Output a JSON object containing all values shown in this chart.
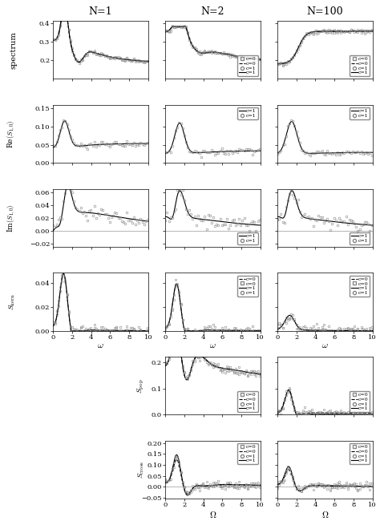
{
  "title_cols": [
    "N=1",
    "N=2",
    "N=100"
  ],
  "ylabels": [
    "spectrum",
    "Re$(S_{1,0})$",
    "Im$(S_{1,0})$",
    "$S_{\\rm kern}$",
    "$S_{\\rm pop}$",
    "$S_{\\rm cross}$"
  ],
  "spectrum_yticks": [
    0.2,
    0.3,
    0.4
  ],
  "spectrum_ylim": [
    0.1,
    0.41
  ],
  "re_yticks": [
    0,
    0.05,
    0.1,
    0.15
  ],
  "re_ylim": [
    0,
    0.16
  ],
  "im_yticks": [
    -0.02,
    0,
    0.02,
    0.04,
    0.06
  ],
  "im_ylim": [
    -0.025,
    0.065
  ],
  "kern_yticks": [
    0,
    0.02,
    0.04
  ],
  "kern_ylim": [
    0,
    0.048
  ],
  "pop_yticks": [
    0,
    0.1,
    0.2
  ],
  "pop_ylim": [
    0,
    0.22
  ],
  "cross_yticks": [
    -0.05,
    0,
    0.05,
    0.1,
    0.15,
    0.2
  ],
  "cross_ylim": [
    -0.055,
    0.21
  ],
  "xlim": [
    0,
    10
  ],
  "sim_color": "#888888",
  "theory_color": "#000000"
}
